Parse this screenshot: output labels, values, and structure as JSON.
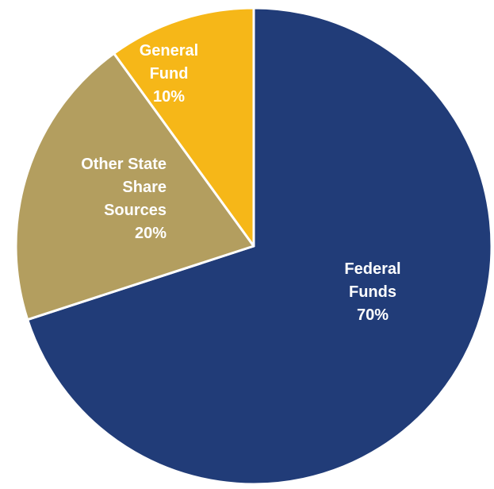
{
  "chart_data": {
    "type": "pie",
    "title": "",
    "slices": [
      {
        "label": [
          "Federal",
          "Funds"
        ],
        "value": 70,
        "value_label": "70%",
        "color": "#213c78"
      },
      {
        "label": [
          "Other State",
          "Share",
          "Sources"
        ],
        "value": 20,
        "value_label": "20%",
        "color": "#b39e5f"
      },
      {
        "label": [
          "General",
          "Fund"
        ],
        "value": 10,
        "value_label": "10%",
        "color": "#f6b718"
      }
    ],
    "start_angle_deg": 0,
    "direction": "clockwise",
    "legend": "none",
    "background": "#ffffff"
  }
}
